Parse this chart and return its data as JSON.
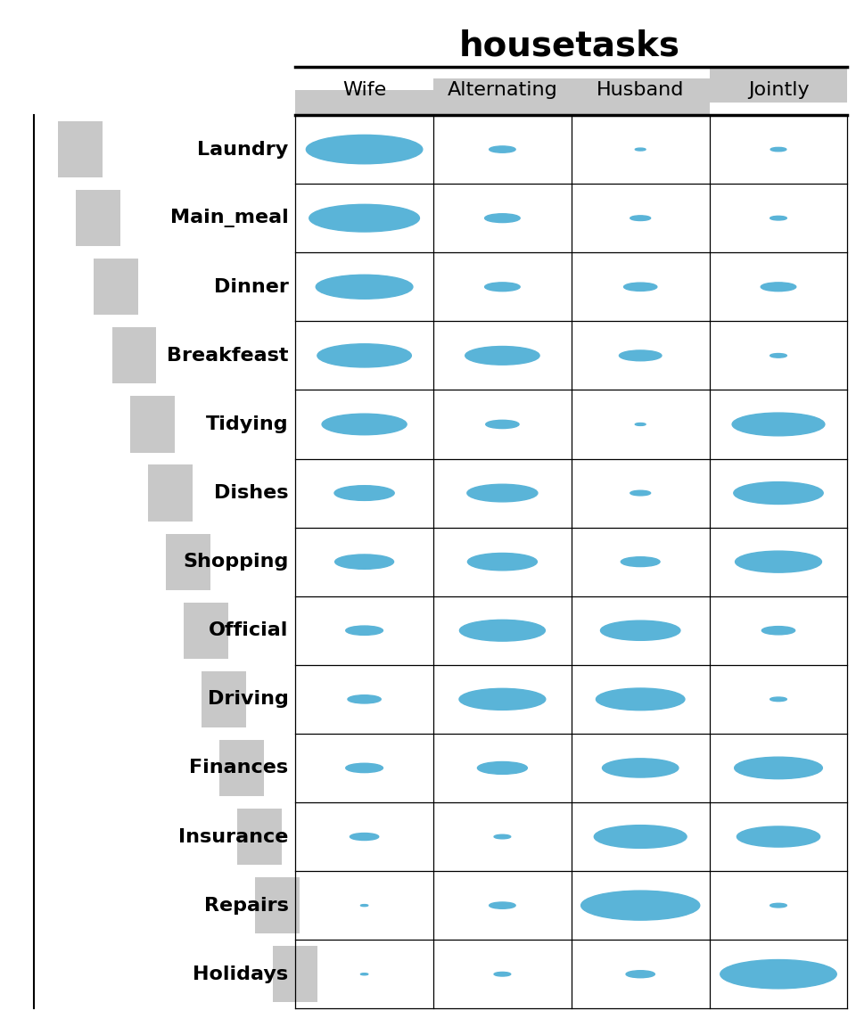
{
  "title": "housetasks",
  "columns": [
    "Wife",
    "Alternating",
    "Husband",
    "Jointly"
  ],
  "rows": [
    "Laundry",
    "Main_meal",
    "Dinner",
    "Breakfeast",
    "Tidying",
    "Dishes",
    "Shopping",
    "Official",
    "Driving",
    "Finances",
    "Insurance",
    "Repairs",
    "Holidays"
  ],
  "bubble_data": [
    [
      490,
      25,
      4,
      9
    ],
    [
      440,
      45,
      15,
      10
    ],
    [
      340,
      45,
      40,
      45
    ],
    [
      320,
      200,
      65,
      10
    ],
    [
      260,
      40,
      4,
      310
    ],
    [
      130,
      180,
      15,
      290
    ],
    [
      125,
      175,
      55,
      270
    ],
    [
      50,
      265,
      230,
      40
    ],
    [
      40,
      270,
      285,
      10
    ],
    [
      50,
      90,
      210,
      280
    ],
    [
      30,
      10,
      310,
      250
    ],
    [
      2,
      25,
      510,
      10
    ],
    [
      2,
      10,
      30,
      490
    ]
  ],
  "bubble_color": "#5ab4d8",
  "bubble_alpha": 1.0,
  "title_fontsize": 28,
  "label_fontsize": 16,
  "header_fontsize": 16,
  "gray_sq_color": "#c8c8c8",
  "header_gray_color": "#c8c8c8"
}
